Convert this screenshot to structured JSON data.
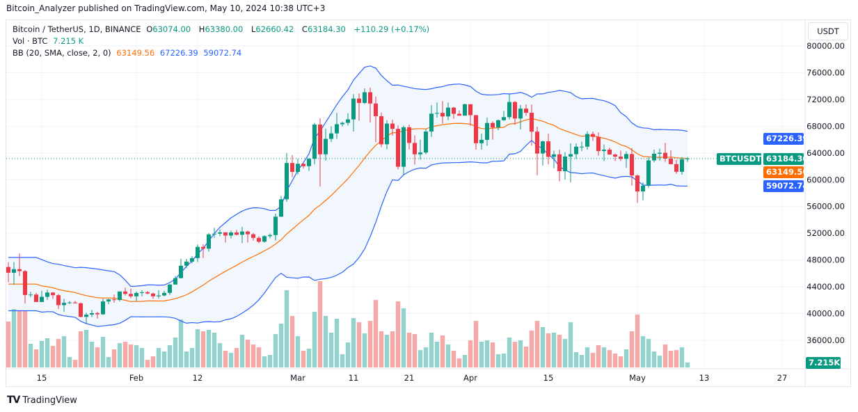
{
  "publish_line": "Bitcoin_Analyzer published on TradingView.com, May 10, 2024 10:38 UTC+3",
  "legend": {
    "symbol": "Bitcoin / TetherUS, 1D, BINANCE",
    "open_label": "O",
    "open": "63074.00",
    "high_label": "H",
    "high": "63380.00",
    "low_label": "L",
    "low": "62660.42",
    "close_label": "C",
    "close": "63184.30",
    "change": "+110.29 (+0.17%)",
    "vol_label": "Vol · BTC",
    "vol": "7.215 K",
    "bb_label": "BB (20, SMA, close, 2, 0)",
    "bb_mid": "63149.56",
    "bb_upper": "67226.39",
    "bb_lower": "59072.74"
  },
  "currency_button": "USDT",
  "tags": {
    "symbol": "BTCUSDT",
    "last_price": "63184.30",
    "bb_mid": "63149.56",
    "bb_lower": "59072.74",
    "bb_upper": "67226.39",
    "volume": "7.215K"
  },
  "footer": {
    "brand": "TradingView",
    "logo": "TV"
  },
  "colors": {
    "up": "#089981",
    "down": "#f23645",
    "vol_up": "#92d2cc",
    "vol_down": "#f7a9a7",
    "bb_mid": "#ff6d00",
    "bb_band": "#2962ff",
    "bb_fill": "#eef5fd"
  },
  "chart_data": {
    "type": "candlestick",
    "title": "Bitcoin / TetherUS, 1D, BINANCE",
    "ylim": [
      34000,
      82000
    ],
    "y_ticks": [
      "80000.00",
      "76000.00",
      "72000.00",
      "68000.00",
      "64000.00",
      "60000.00",
      "56000.00",
      "52000.00",
      "48000.00",
      "44000.00",
      "40000.00",
      "36000.00"
    ],
    "x_ticks": [
      {
        "label": "15",
        "date": "2024-01-15"
      },
      {
        "label": "Feb",
        "date": "2024-02-01"
      },
      {
        "label": "12",
        "date": "2024-02-12"
      },
      {
        "label": "Mar",
        "date": "2024-03-01"
      },
      {
        "label": "11",
        "date": "2024-03-11"
      },
      {
        "label": "21",
        "date": "2024-03-21"
      },
      {
        "label": "Apr",
        "date": "2024-04-01"
      },
      {
        "label": "15",
        "date": "2024-04-15"
      },
      {
        "label": "May",
        "date": "2024-05-01"
      },
      {
        "label": "13",
        "date": "2024-05-13"
      },
      {
        "label": "27",
        "date": "2024-05-27"
      }
    ],
    "indicator": "BB (20, SMA, close, 2, 0)",
    "volume_unit": "K BTC",
    "candles_columns": [
      "date",
      "open",
      "high",
      "low",
      "close",
      "volume_k"
    ],
    "candles": [
      [
        "2024-01-09",
        46960,
        47700,
        44700,
        46100,
        66
      ],
      [
        "2024-01-10",
        46100,
        47700,
        44300,
        46630,
        84
      ],
      [
        "2024-01-11",
        46630,
        48970,
        45600,
        46340,
        82
      ],
      [
        "2024-01-12",
        46340,
        46500,
        41500,
        42780,
        81
      ],
      [
        "2024-01-13",
        42780,
        43250,
        42430,
        42840,
        34
      ],
      [
        "2024-01-14",
        42840,
        43080,
        41720,
        41730,
        26
      ],
      [
        "2024-01-15",
        41730,
        43400,
        41720,
        42500,
        38
      ],
      [
        "2024-01-16",
        42500,
        43580,
        42050,
        43140,
        42
      ],
      [
        "2024-01-17",
        43140,
        43200,
        42190,
        42740,
        31
      ],
      [
        "2024-01-18",
        42740,
        42930,
        40680,
        41260,
        41
      ],
      [
        "2024-01-19",
        41260,
        42200,
        40280,
        41610,
        45
      ],
      [
        "2024-01-20",
        41610,
        41870,
        41440,
        41660,
        15
      ],
      [
        "2024-01-21",
        41660,
        41880,
        41500,
        41540,
        11
      ],
      [
        "2024-01-22",
        41540,
        41650,
        39430,
        39500,
        52
      ],
      [
        "2024-01-23",
        39500,
        40130,
        38550,
        39840,
        54
      ],
      [
        "2024-01-24",
        39840,
        40550,
        39480,
        40070,
        37
      ],
      [
        "2024-01-25",
        40070,
        40290,
        39260,
        39890,
        29
      ],
      [
        "2024-01-26",
        39890,
        42230,
        39820,
        41810,
        44
      ],
      [
        "2024-01-27",
        41810,
        42200,
        41400,
        42120,
        15
      ],
      [
        "2024-01-28",
        42120,
        42840,
        41620,
        42030,
        26
      ],
      [
        "2024-01-29",
        42030,
        43300,
        41800,
        43300,
        35
      ],
      [
        "2024-01-30",
        43300,
        43880,
        42680,
        42940,
        37
      ],
      [
        "2024-01-31",
        42940,
        43750,
        42280,
        42580,
        33
      ],
      [
        "2024-02-01",
        42580,
        43290,
        41880,
        43080,
        32
      ],
      [
        "2024-02-02",
        43080,
        43490,
        42570,
        43190,
        28
      ],
      [
        "2024-02-03",
        43190,
        43380,
        42880,
        43000,
        11
      ],
      [
        "2024-02-04",
        43000,
        43120,
        42220,
        42580,
        16
      ],
      [
        "2024-02-05",
        42580,
        43500,
        42260,
        42700,
        28
      ],
      [
        "2024-02-06",
        42700,
        43400,
        42570,
        43090,
        23
      ],
      [
        "2024-02-07",
        43090,
        44390,
        42790,
        44340,
        32
      ],
      [
        "2024-02-08",
        44340,
        45610,
        44330,
        45290,
        43
      ],
      [
        "2024-02-09",
        45290,
        48200,
        45250,
        47150,
        69
      ],
      [
        "2024-02-10",
        47150,
        48170,
        46800,
        47770,
        23
      ],
      [
        "2024-02-11",
        47770,
        48590,
        47520,
        48290,
        28
      ],
      [
        "2024-02-12",
        48290,
        50330,
        47720,
        49960,
        55
      ],
      [
        "2024-02-13",
        49960,
        50370,
        48300,
        49700,
        52
      ],
      [
        "2024-02-14",
        49700,
        52040,
        49260,
        51830,
        54
      ],
      [
        "2024-02-15",
        51830,
        52820,
        51320,
        51940,
        50
      ],
      [
        "2024-02-16",
        51940,
        52570,
        51570,
        52140,
        35
      ],
      [
        "2024-02-17",
        52140,
        52170,
        50620,
        51660,
        24
      ],
      [
        "2024-02-18",
        51660,
        52400,
        51210,
        52120,
        21
      ],
      [
        "2024-02-19",
        52120,
        52500,
        51700,
        51780,
        28
      ],
      [
        "2024-02-20",
        51780,
        52980,
        50520,
        52260,
        47
      ],
      [
        "2024-02-21",
        52260,
        52390,
        50620,
        51850,
        40
      ],
      [
        "2024-02-22",
        51850,
        52060,
        50920,
        51310,
        33
      ],
      [
        "2024-02-23",
        51310,
        51550,
        50520,
        50740,
        29
      ],
      [
        "2024-02-24",
        50740,
        51700,
        50580,
        51570,
        16
      ],
      [
        "2024-02-25",
        51570,
        51960,
        51280,
        51730,
        18
      ],
      [
        "2024-02-26",
        51730,
        54940,
        50900,
        54480,
        48
      ],
      [
        "2024-02-27",
        54480,
        57590,
        54450,
        57080,
        63
      ],
      [
        "2024-02-28",
        57080,
        64000,
        56700,
        62500,
        111
      ],
      [
        "2024-02-29",
        62500,
        63680,
        60360,
        61170,
        74
      ],
      [
        "2024-03-01",
        61170,
        63140,
        60780,
        62390,
        45
      ],
      [
        "2024-03-02",
        62390,
        62430,
        61650,
        62030,
        24
      ],
      [
        "2024-03-03",
        62030,
        63230,
        61320,
        63130,
        27
      ],
      [
        "2024-03-04",
        63130,
        68500,
        62300,
        68250,
        80
      ],
      [
        "2024-03-05",
        68250,
        69170,
        59000,
        63800,
        124
      ],
      [
        "2024-03-06",
        63800,
        67640,
        62850,
        66110,
        74
      ],
      [
        "2024-03-07",
        66110,
        67990,
        65650,
        66930,
        50
      ],
      [
        "2024-03-08",
        66930,
        69990,
        66100,
        68300,
        70
      ],
      [
        "2024-03-09",
        68300,
        68670,
        67950,
        68500,
        19
      ],
      [
        "2024-03-10",
        68500,
        69920,
        68100,
        69020,
        36
      ],
      [
        "2024-03-11",
        69020,
        72800,
        67200,
        72130,
        71
      ],
      [
        "2024-03-12",
        72130,
        72920,
        68850,
        71480,
        65
      ],
      [
        "2024-03-13",
        71480,
        73650,
        71330,
        73080,
        49
      ],
      [
        "2024-03-14",
        73080,
        73780,
        68560,
        71390,
        67
      ],
      [
        "2024-03-15",
        71390,
        72420,
        65630,
        69500,
        97
      ],
      [
        "2024-03-16",
        69500,
        70040,
        64870,
        65300,
        52
      ],
      [
        "2024-03-17",
        65300,
        68900,
        64550,
        68390,
        47
      ],
      [
        "2024-03-18",
        68390,
        68950,
        66600,
        67610,
        52
      ],
      [
        "2024-03-19",
        67610,
        68120,
        61560,
        61940,
        95
      ],
      [
        "2024-03-20",
        61940,
        68100,
        60770,
        67840,
        85
      ],
      [
        "2024-03-21",
        67840,
        68240,
        64530,
        65500,
        50
      ],
      [
        "2024-03-22",
        65500,
        66650,
        62260,
        63800,
        48
      ],
      [
        "2024-03-23",
        63800,
        65980,
        63000,
        64070,
        25
      ],
      [
        "2024-03-24",
        64070,
        67620,
        63800,
        67210,
        29
      ],
      [
        "2024-03-25",
        67210,
        71150,
        66390,
        69880,
        50
      ],
      [
        "2024-03-26",
        69880,
        71560,
        69280,
        69990,
        37
      ],
      [
        "2024-03-27",
        69990,
        71770,
        68360,
        69460,
        46
      ],
      [
        "2024-03-28",
        69460,
        71550,
        68900,
        70780,
        33
      ],
      [
        "2024-03-29",
        70780,
        70900,
        69110,
        69850,
        24
      ],
      [
        "2024-03-30",
        69850,
        70350,
        69560,
        69580,
        13
      ],
      [
        "2024-03-31",
        69580,
        71370,
        69580,
        71280,
        18
      ],
      [
        "2024-04-01",
        71280,
        71300,
        68060,
        69650,
        39
      ],
      [
        "2024-04-02",
        69650,
        69670,
        64500,
        65460,
        67
      ],
      [
        "2024-04-03",
        65460,
        66910,
        64500,
        65960,
        37
      ],
      [
        "2024-04-04",
        65960,
        69300,
        65080,
        68490,
        39
      ],
      [
        "2024-04-05",
        68490,
        68720,
        66000,
        67820,
        36
      ],
      [
        "2024-04-06",
        67820,
        69000,
        67400,
        68900,
        19
      ],
      [
        "2024-04-07",
        68900,
        70300,
        68800,
        69360,
        20
      ],
      [
        "2024-04-08",
        69360,
        72800,
        69040,
        71620,
        43
      ],
      [
        "2024-04-09",
        71620,
        71760,
        68210,
        69150,
        37
      ],
      [
        "2024-04-10",
        69150,
        71170,
        67520,
        70630,
        39
      ],
      [
        "2024-04-11",
        70630,
        71280,
        69560,
        70010,
        30
      ],
      [
        "2024-04-12",
        70010,
        71230,
        65100,
        67190,
        53
      ],
      [
        "2024-04-13",
        67190,
        67930,
        60660,
        63920,
        67
      ],
      [
        "2024-04-14",
        63920,
        65840,
        62130,
        65740,
        58
      ],
      [
        "2024-04-15",
        65740,
        66870,
        62300,
        63420,
        49
      ],
      [
        "2024-04-16",
        63420,
        64350,
        61700,
        63790,
        50
      ],
      [
        "2024-04-17",
        63790,
        64490,
        59770,
        61280,
        47
      ],
      [
        "2024-04-18",
        61280,
        64130,
        60000,
        63470,
        41
      ],
      [
        "2024-04-19",
        63470,
        65450,
        59600,
        63820,
        65
      ],
      [
        "2024-04-20",
        63820,
        65450,
        63070,
        64940,
        22
      ],
      [
        "2024-04-21",
        64940,
        65700,
        64280,
        64940,
        18
      ],
      [
        "2024-04-22",
        64940,
        67230,
        64500,
        66840,
        29
      ],
      [
        "2024-04-23",
        66840,
        67200,
        65800,
        66410,
        21
      ],
      [
        "2024-04-24",
        66410,
        67070,
        63600,
        64290,
        32
      ],
      [
        "2024-04-25",
        64290,
        65280,
        62790,
        64500,
        29
      ],
      [
        "2024-04-26",
        64500,
        64800,
        63740,
        63770,
        25
      ],
      [
        "2024-04-27",
        63770,
        63920,
        62800,
        63460,
        20
      ],
      [
        "2024-04-28",
        63460,
        64360,
        62800,
        63120,
        16
      ],
      [
        "2024-04-29",
        63120,
        64240,
        61770,
        63840,
        26
      ],
      [
        "2024-04-30",
        63840,
        64730,
        59100,
        60640,
        52
      ],
      [
        "2024-05-01",
        60640,
        60780,
        56550,
        58250,
        76
      ],
      [
        "2024-05-02",
        58250,
        59600,
        56940,
        59120,
        45
      ],
      [
        "2024-05-03",
        59120,
        63320,
        58800,
        62890,
        41
      ],
      [
        "2024-05-04",
        62890,
        64500,
        62600,
        63890,
        23
      ],
      [
        "2024-05-05",
        63890,
        64650,
        62850,
        64030,
        17
      ],
      [
        "2024-05-06",
        64030,
        65500,
        62700,
        63160,
        33
      ],
      [
        "2024-05-07",
        63160,
        64400,
        62300,
        62330,
        24
      ],
      [
        "2024-05-08",
        62330,
        62990,
        60880,
        61190,
        25
      ],
      [
        "2024-05-09",
        61190,
        63400,
        60750,
        63070,
        29
      ],
      [
        "2024-05-10",
        63074,
        63380,
        62660.42,
        63184.3,
        7.215
      ]
    ]
  }
}
